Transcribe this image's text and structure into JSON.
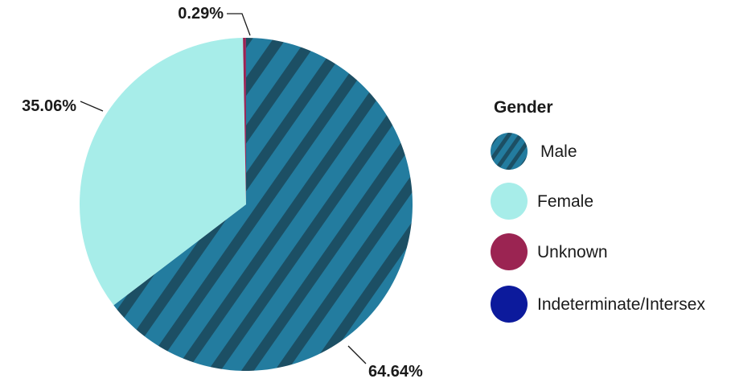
{
  "chart_data": {
    "type": "pie",
    "legend_title": "Gender",
    "legend_position": "right",
    "slices": [
      {
        "label": "Male",
        "value": 64.64,
        "display": "64.64%",
        "color": "#237c9f",
        "pattern": "diagonal-stripes",
        "stripe_color": "#1c4f64"
      },
      {
        "label": "Female",
        "value": 35.06,
        "display": "35.06%",
        "color": "#a7ede9"
      },
      {
        "label": "Unknown",
        "value": 0.29,
        "display": "0.29%",
        "color": "#9b2452"
      },
      {
        "label": "Indeterminate/Intersex",
        "value": 0.01,
        "display": "",
        "color": "#0c1a9c"
      }
    ]
  }
}
